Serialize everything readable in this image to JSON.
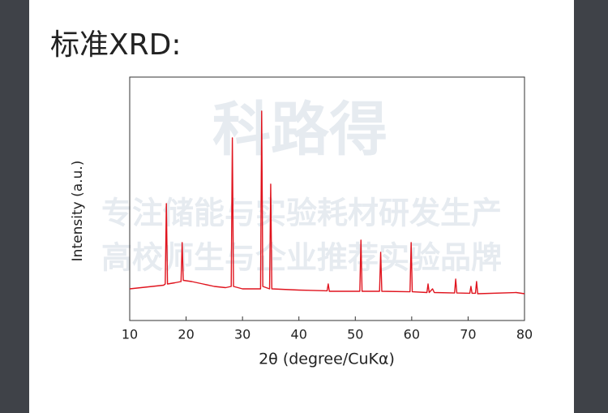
{
  "heading": "标准XRD:",
  "watermark": {
    "brand": "科路得",
    "line1": "专注储能与实验耗材研发生产",
    "line2": "高校师生与企业推荐实验品牌"
  },
  "chart_data": {
    "type": "line",
    "xlabel": "2θ (degree/CuKα)",
    "ylabel": "Intensity (a.u.)",
    "xlim": [
      10,
      80
    ],
    "xticks": [
      10,
      20,
      30,
      40,
      50,
      60,
      70,
      80
    ],
    "ylim": [
      0,
      100
    ],
    "series": [
      {
        "color": "#e0141e",
        "x": [
          10,
          12,
          14,
          16,
          16.3,
          16.5,
          16.7,
          18,
          19.1,
          19.3,
          19.5,
          21,
          23,
          25,
          27,
          28,
          28.2,
          28.4,
          30,
          33.2,
          33.4,
          33.6,
          34.8,
          35,
          35.2,
          40,
          45,
          45.2,
          45.4,
          50.8,
          51,
          51.2,
          54.3,
          54.5,
          54.7,
          59.7,
          59.9,
          60.1,
          62.7,
          62.9,
          63.1,
          63.7,
          64,
          67.6,
          67.8,
          68,
          70.3,
          70.5,
          70.7,
          71.3,
          71.5,
          71.7,
          78.5,
          80
        ],
        "values": [
          13,
          13.5,
          14,
          14.5,
          15,
          48,
          15,
          15.5,
          16,
          32,
          16.5,
          16,
          15,
          14,
          13.5,
          14,
          75,
          14,
          13,
          13,
          86,
          14,
          13,
          56,
          13,
          12.5,
          12.2,
          15,
          12,
          12,
          33,
          12,
          12,
          28,
          12,
          11.8,
          32,
          11.8,
          11.5,
          15,
          11.5,
          13,
          11.5,
          11.3,
          17,
          11.3,
          11.2,
          14,
          11.2,
          11.2,
          16,
          11,
          11.5,
          11
        ]
      }
    ]
  }
}
